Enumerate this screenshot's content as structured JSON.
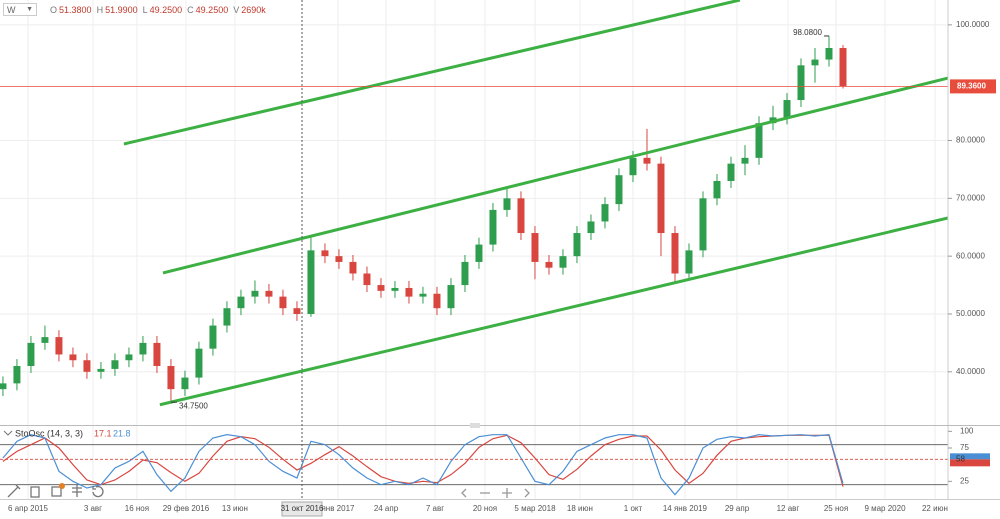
{
  "toolbar": {
    "interval": "W",
    "quote": [
      {
        "key": "O",
        "value": "51.3800"
      },
      {
        "key": "H",
        "value": "51.9900"
      },
      {
        "key": "L",
        "value": "49.2500"
      },
      {
        "key": "C",
        "value": "49.2500"
      },
      {
        "key": "V",
        "value": "2690k"
      }
    ]
  },
  "chart_data": [
    {
      "type": "candlestick",
      "open": [
        37,
        38,
        41,
        45,
        46,
        43,
        42,
        40,
        40.5,
        42,
        43,
        45,
        41,
        37,
        39,
        44,
        48,
        51,
        53,
        54,
        53,
        51,
        50,
        61,
        60,
        59,
        57,
        55,
        54,
        54.5,
        53,
        53.5,
        51,
        55,
        59,
        62,
        68,
        70,
        64,
        59,
        58,
        60,
        64,
        66,
        69,
        74,
        77,
        76,
        64,
        57,
        61,
        70,
        73,
        76,
        77,
        83,
        84,
        87,
        93,
        94,
        96
      ],
      "high": [
        39.2,
        42.2,
        46.2,
        48,
        47.2,
        44.2,
        43.2,
        41.7,
        43.2,
        44.2,
        46.2,
        46.2,
        42.2,
        40.2,
        45.2,
        49.2,
        52.2,
        54.2,
        55.8,
        55.2,
        54.2,
        52.2,
        63.5,
        62.2,
        61.2,
        60.2,
        58.2,
        56.2,
        55.7,
        55.7,
        54.7,
        54.7,
        56.2,
        60.2,
        63.2,
        69.2,
        72,
        71.2,
        65.2,
        60.2,
        61.2,
        65.2,
        67.2,
        70.2,
        75.2,
        78.2,
        82,
        77.2,
        65.2,
        62.2,
        71.2,
        74.2,
        77.2,
        79.2,
        84.2,
        86,
        88.2,
        94.2,
        96,
        98.08,
        96.5
      ],
      "low": [
        35.8,
        36.8,
        39.8,
        43.8,
        41.8,
        40.8,
        38.8,
        38.8,
        39.3,
        40.8,
        41.8,
        39.8,
        34.75,
        35.8,
        37.8,
        42.8,
        46.8,
        49.8,
        51.8,
        51.8,
        49.8,
        48.8,
        49.5,
        58.8,
        57.8,
        55.8,
        53.8,
        52.8,
        52.8,
        51.8,
        51.8,
        49.8,
        49.8,
        53.8,
        57.8,
        60.8,
        66.8,
        62.8,
        56,
        56.8,
        56.8,
        58.8,
        62.8,
        64.8,
        67.8,
        72.8,
        74.8,
        60,
        55.5,
        55.8,
        59.8,
        68.8,
        71.8,
        74,
        75.8,
        81.8,
        82.8,
        85.8,
        90,
        92.8,
        89
      ],
      "close": [
        38,
        41,
        45,
        46,
        43,
        42,
        40,
        40.5,
        42,
        43,
        45,
        41,
        37,
        39,
        44,
        48,
        51,
        53,
        54,
        53,
        51,
        50,
        61,
        60,
        59,
        57,
        55,
        54,
        54.5,
        53,
        53.5,
        51,
        55,
        59,
        62,
        68,
        70,
        64,
        59,
        58,
        60,
        64,
        66,
        69,
        74,
        77,
        76,
        64,
        57,
        61,
        70,
        73,
        76,
        77,
        83,
        84,
        87,
        93,
        94,
        96,
        89.36
      ],
      "up_color": "#2e9e4e",
      "down_color": "#d9463f",
      "xlim": [
        -0.21,
        67.5
      ],
      "xticks": [
        {
          "value": 1.79,
          "label": "6 апр 2015"
        },
        {
          "value": 6.43,
          "label": "3 авг"
        },
        {
          "value": 9.57,
          "label": "16 ноя"
        },
        {
          "value": 13.07,
          "label": "29 фев 2016"
        },
        {
          "value": 16.57,
          "label": "13 июн"
        },
        {
          "value": 23.93,
          "label": "янв 2017"
        },
        {
          "value": 27.36,
          "label": "24 апр"
        },
        {
          "value": 30.86,
          "label": "7 авг"
        },
        {
          "value": 34.43,
          "label": "20 ноя"
        },
        {
          "value": 38,
          "label": "5 мар 2018"
        },
        {
          "value": 41.21,
          "label": "18 июн"
        },
        {
          "value": 45,
          "label": "1 окт"
        },
        {
          "value": 48.71,
          "label": "14 янв 2019"
        },
        {
          "value": 52.43,
          "label": "29 апр"
        },
        {
          "value": 56.07,
          "label": "12 авг"
        },
        {
          "value": 59.5,
          "label": "25 ноя"
        },
        {
          "value": 63,
          "label": "9 мар 2020"
        },
        {
          "value": 66.57,
          "label": "22 июн"
        }
      ],
      "ylim": [
        30.8,
        104.3
      ],
      "yticks": [
        {
          "value": 100,
          "label": "100.0000"
        },
        {
          "value": 80,
          "label": "80.0000"
        },
        {
          "value": 70,
          "label": "70.0000"
        },
        {
          "value": 60,
          "label": "60.0000"
        },
        {
          "value": 50,
          "label": "50.0000"
        },
        {
          "value": 40,
          "label": "40.0000"
        }
      ],
      "grid": true,
      "last_price": {
        "value": 89.36,
        "label": "89.3600",
        "color": "#e74c3c"
      },
      "annotations": [
        {
          "x": 59,
          "value": 98.08,
          "label": "98.0800"
        },
        {
          "x": 12,
          "value": 34.75,
          "label": "34.7500"
        }
      ],
      "trend_lines": {
        "color": "#3cb043",
        "lines": [
          {
            "x": [
              8.64,
              52.64
            ],
            "values": [
              79.4,
              104.3
            ]
          },
          {
            "x": [
              11.43,
              67.5
            ],
            "values": [
              57.1,
              90.8
            ]
          },
          {
            "x": [
              11.21,
              67.5
            ],
            "values": [
              34.3,
              66.6
            ]
          }
        ]
      },
      "crosshair": {
        "value": 21.36,
        "label": "31 окт 2016"
      }
    },
    {
      "type": "line",
      "title": "StoOsc (14, 3, 3)",
      "series": [
        {
          "color": "#d9463f",
          "values": [
            55,
            70,
            80,
            90,
            75,
            50,
            27,
            20,
            27,
            40,
            57,
            53,
            38,
            25,
            37,
            63,
            85,
            92,
            89,
            76,
            58,
            42,
            52,
            65,
            77,
            63,
            47,
            32,
            25,
            22,
            25,
            23,
            35,
            52,
            76,
            89,
            94,
            83,
            60,
            35,
            28,
            43,
            63,
            80,
            88,
            93,
            93,
            72,
            42,
            22,
            37,
            64,
            85,
            90,
            92,
            93,
            94,
            94,
            94,
            94,
            17.1
          ]
        },
        {
          "color": "#4a8fd4",
          "values": [
            60,
            85,
            95,
            90,
            40,
            25,
            15,
            20,
            45,
            55,
            70,
            35,
            10,
            30,
            70,
            90,
            95,
            92,
            80,
            55,
            40,
            30,
            85,
            80,
            65,
            45,
            30,
            20,
            25,
            20,
            30,
            20,
            55,
            80,
            92,
            95,
            95,
            60,
            25,
            20,
            40,
            70,
            80,
            90,
            95,
            95,
            90,
            30,
            5,
            30,
            75,
            88,
            92,
            90,
            95,
            93,
            94,
            95,
            93,
            95,
            21.8
          ]
        }
      ],
      "ylim": [
        0,
        108
      ],
      "yticks": [
        100,
        75,
        25
      ],
      "levels": [
        80,
        20
      ],
      "marker": {
        "value": 58,
        "label": "58"
      }
    }
  ]
}
